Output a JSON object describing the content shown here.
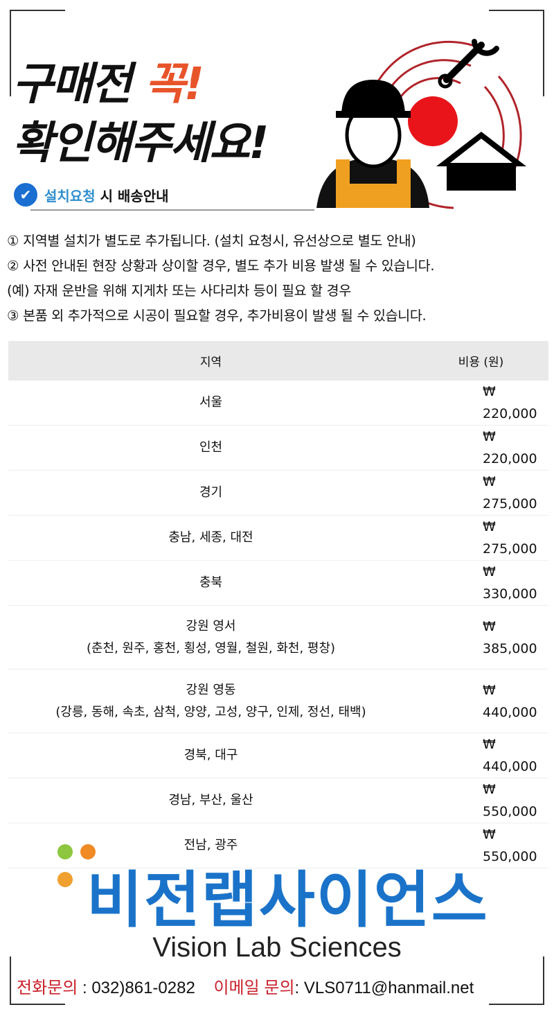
{
  "header": {
    "line1": "구매전 ",
    "line1_emphasis": "꼭!",
    "line2": "확인해주세요!",
    "sub_highlight": "설치요청",
    "sub_rest": " 시 배송안내"
  },
  "notes": [
    "① 지역별 설치가 별도로 추가됩니다. (설치 요청시, 유선상으로 별도 안내)",
    "② 사전 안내된 현장 상황과 상이할 경우, 별도 추가 비용 발생 될 수 있습니다.",
    " (예) 자재 운반을 위해 지게차 또는 사다리차 등이 필요 할 경우",
    "③ 본품 외 추가적으로 시공이 필요할 경우, 추가비용이 발생 될 수 있습니다."
  ],
  "table": {
    "headers": [
      "지역",
      "비용 (원)"
    ],
    "rows": [
      {
        "region": "서울",
        "detail": "",
        "cost": "₩ 220,000"
      },
      {
        "region": "인천",
        "detail": "",
        "cost": "₩ 220,000"
      },
      {
        "region": "경기",
        "detail": "",
        "cost": "₩ 275,000"
      },
      {
        "region": "충남, 세종, 대전",
        "detail": "",
        "cost": "₩ 275,000"
      },
      {
        "region": "충북",
        "detail": "",
        "cost": "₩ 330,000"
      },
      {
        "region": "강원 영서",
        "detail": "(춘천, 원주, 홍천, 횡성, 영월, 철원, 화천, 평창)",
        "cost": "₩ 385,000"
      },
      {
        "region": "강원 영동",
        "detail": "(강릉, 동해, 속초, 삼척, 양양, 고성, 양구, 인제, 정선, 태백)",
        "cost": "₩ 440,000"
      },
      {
        "region": "경북, 대구",
        "detail": "",
        "cost": "₩ 440,000"
      },
      {
        "region": "경남, 부산, 울산",
        "detail": "",
        "cost": "₩ 550,000"
      },
      {
        "region": "전남, 광주",
        "detail": "",
        "cost": "₩ 550,000"
      }
    ]
  },
  "footer": {
    "brand_ko": "비전랩사이언스",
    "brand_en": "Vision Lab Sciences",
    "phone_label": "전화문의",
    "phone": " : 032)861-0282",
    "email_label": "이메일 문의",
    "email": ": VLS0711@hanmail.net"
  },
  "colors": {
    "accent": "#e8542a",
    "brand": "#1a73c9",
    "contact_label": "#c8202a"
  }
}
